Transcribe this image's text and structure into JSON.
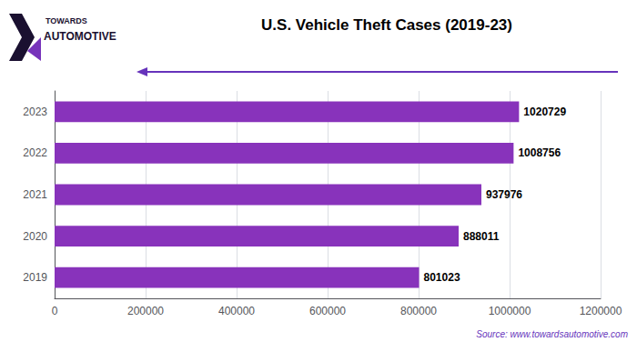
{
  "chart_data": {
    "type": "bar",
    "orientation": "horizontal",
    "title": "U.S. Vehicle Theft Cases (2019-23)",
    "categories": [
      "2023",
      "2022",
      "2021",
      "2020",
      "2019"
    ],
    "values": [
      1020729,
      1008756,
      937976,
      888011,
      801023
    ],
    "color": "#8833bb",
    "xlim": [
      0,
      1200000
    ],
    "xticks": [
      0,
      200000,
      400000,
      600000,
      800000,
      1000000,
      1200000
    ],
    "grid": true,
    "data_labels": true,
    "annotations": [
      "Source: www.towardsautomotive.com",
      "TOWARDS",
      "AUTOMOTIVE"
    ]
  }
}
